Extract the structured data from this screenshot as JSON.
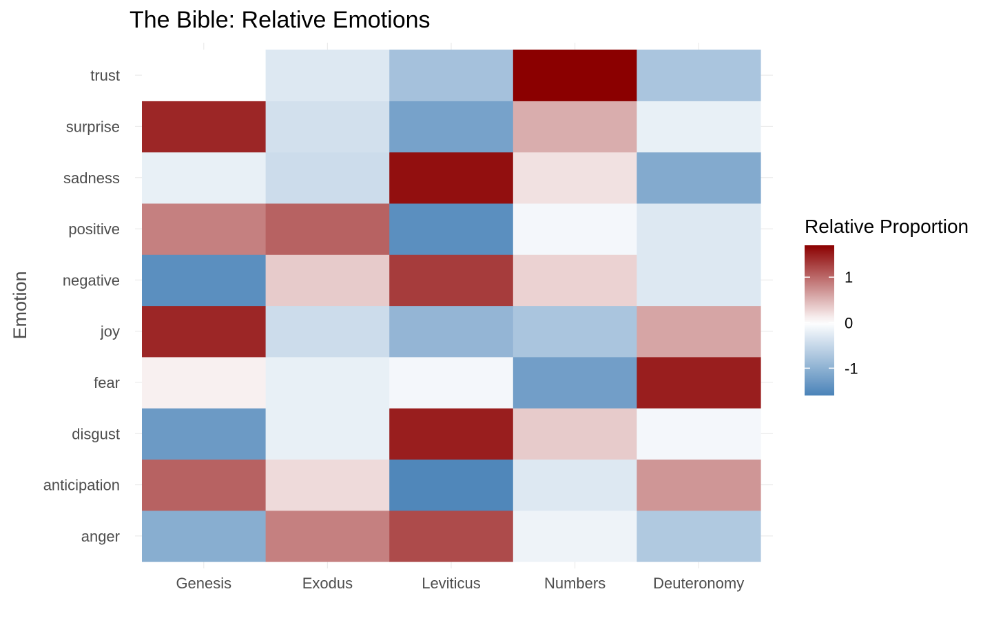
{
  "chart_data": {
    "type": "heatmap",
    "title": "The Bible: Relative Emotions",
    "xlabel": "",
    "ylabel": "Emotion",
    "x_categories": [
      "Genesis",
      "Exodus",
      "Leviticus",
      "Numbers",
      "Deuteronomy"
    ],
    "y_categories": [
      "anger",
      "anticipation",
      "disgust",
      "fear",
      "joy",
      "negative",
      "positive",
      "sadness",
      "surprise",
      "trust"
    ],
    "values": {
      "trust": [
        0.0,
        -0.3,
        -0.8,
        1.7,
        -0.75
      ],
      "surprise": [
        1.45,
        -0.4,
        -1.2,
        0.55,
        -0.2
      ],
      "sadness": [
        -0.2,
        -0.45,
        1.6,
        0.2,
        -1.1
      ],
      "positive": [
        0.85,
        1.05,
        -1.45,
        -0.1,
        -0.3
      ],
      "negative": [
        -1.45,
        0.35,
        1.3,
        0.3,
        -0.3
      ],
      "joy": [
        1.45,
        -0.45,
        -0.95,
        -0.75,
        0.6
      ],
      "fear": [
        0.1,
        -0.2,
        -0.1,
        -1.25,
        1.5
      ],
      "disgust": [
        -1.3,
        -0.2,
        1.5,
        0.35,
        -0.1
      ],
      "anticipation": [
        1.05,
        0.25,
        -1.55,
        -0.3,
        0.7
      ],
      "anger": [
        -1.05,
        0.85,
        1.2,
        -0.15,
        -0.7
      ]
    },
    "color_scale": {
      "low": "#4a83b8",
      "mid": "#ffffff",
      "high": "#8b0000",
      "min": -1.6,
      "max": 1.7
    },
    "grid": true,
    "legend": {
      "title": "Relative Proportion",
      "position": "right",
      "breaks": [
        1,
        0,
        -1
      ],
      "labels": [
        "1",
        "0",
        "-1"
      ]
    }
  }
}
